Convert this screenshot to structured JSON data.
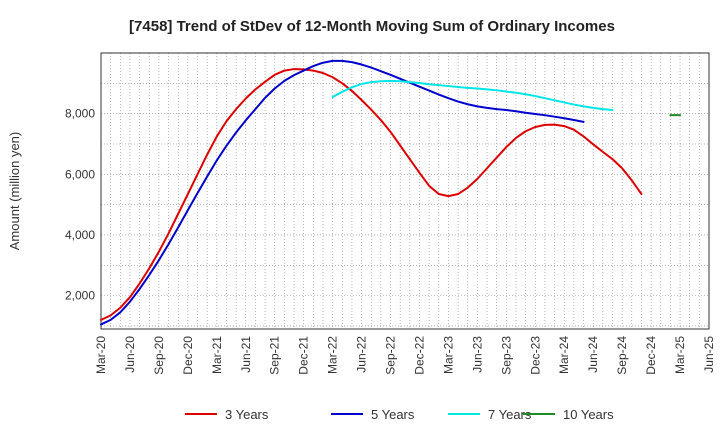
{
  "chart_data": {
    "type": "line",
    "title": "[7458]  Trend of StDev of 12-Month Moving Sum of Ordinary Incomes",
    "xlabel": "",
    "ylabel": "Amount (million yen)",
    "ylim": [
      900,
      10000
    ],
    "grid": true,
    "legend_position": "bottom",
    "x_ticks": [
      "Mar-20",
      "Jun-20",
      "Sep-20",
      "Dec-20",
      "Mar-21",
      "Jun-21",
      "Sep-21",
      "Dec-21",
      "Mar-22",
      "Jun-22",
      "Sep-22",
      "Dec-22",
      "Mar-23",
      "Jun-23",
      "Sep-23",
      "Dec-23",
      "Mar-24",
      "Jun-24",
      "Sep-24",
      "Dec-24",
      "Mar-25",
      "Jun-25"
    ],
    "y_ticks": [
      2000,
      4000,
      6000,
      8000
    ],
    "y_tick_labels": [
      "2,000",
      "4,000",
      "6,000",
      "8,000"
    ],
    "months_from_start": [
      0,
      1,
      2,
      3,
      4,
      5,
      6,
      7,
      8,
      9,
      10,
      11,
      12,
      13,
      14,
      15,
      16,
      17,
      18,
      19,
      20,
      21,
      22,
      23,
      24,
      25,
      26,
      27,
      28,
      29,
      30,
      31,
      32,
      33,
      34,
      35,
      36,
      37,
      38,
      39,
      40,
      41,
      42,
      43,
      44,
      45,
      46,
      47,
      48,
      49,
      50,
      51,
      52,
      53,
      54,
      55,
      56,
      57,
      58,
      59,
      60
    ],
    "series": [
      {
        "name": "3 Years",
        "color": "#dd0000",
        "start_month": 0,
        "values": [
          1200,
          1350,
          1600,
          1950,
          2400,
          2900,
          3450,
          4050,
          4700,
          5350,
          6000,
          6650,
          7250,
          7750,
          8150,
          8500,
          8800,
          9050,
          9280,
          9420,
          9470,
          9460,
          9420,
          9340,
          9200,
          9000,
          8750,
          8450,
          8130,
          7790,
          7400,
          6950,
          6500,
          6050,
          5620,
          5350,
          5280,
          5350,
          5560,
          5850,
          6200,
          6550,
          6900,
          7200,
          7420,
          7560,
          7630,
          7640,
          7590,
          7470,
          7250,
          6990,
          6740,
          6500,
          6200,
          5800,
          5350
        ]
      },
      {
        "name": "5 Years",
        "color": "#0000cc",
        "start_month": 0,
        "values": [
          1050,
          1200,
          1450,
          1800,
          2220,
          2680,
          3170,
          3700,
          4250,
          4820,
          5380,
          5930,
          6460,
          6940,
          7380,
          7780,
          8150,
          8520,
          8830,
          9080,
          9270,
          9420,
          9570,
          9680,
          9740,
          9740,
          9700,
          9620,
          9520,
          9400,
          9280,
          9150,
          9020,
          8890,
          8760,
          8630,
          8510,
          8400,
          8310,
          8240,
          8190,
          8150,
          8120,
          8080,
          8030,
          7990,
          7950,
          7900,
          7850,
          7790,
          7730
        ]
      },
      {
        "name": "7 Years",
        "color": "#00e5e5",
        "start_month": 24,
        "values": [
          8550,
          8720,
          8870,
          8980,
          9040,
          9070,
          9080,
          9070,
          9040,
          9010,
          8970,
          8940,
          8910,
          8880,
          8850,
          8830,
          8800,
          8770,
          8730,
          8690,
          8640,
          8580,
          8510,
          8440,
          8370,
          8300,
          8240,
          8190,
          8150,
          8120
        ]
      },
      {
        "name": "10 Years",
        "color": "#228b22",
        "start_month": 59,
        "values": [
          7950,
          7950
        ]
      }
    ]
  }
}
